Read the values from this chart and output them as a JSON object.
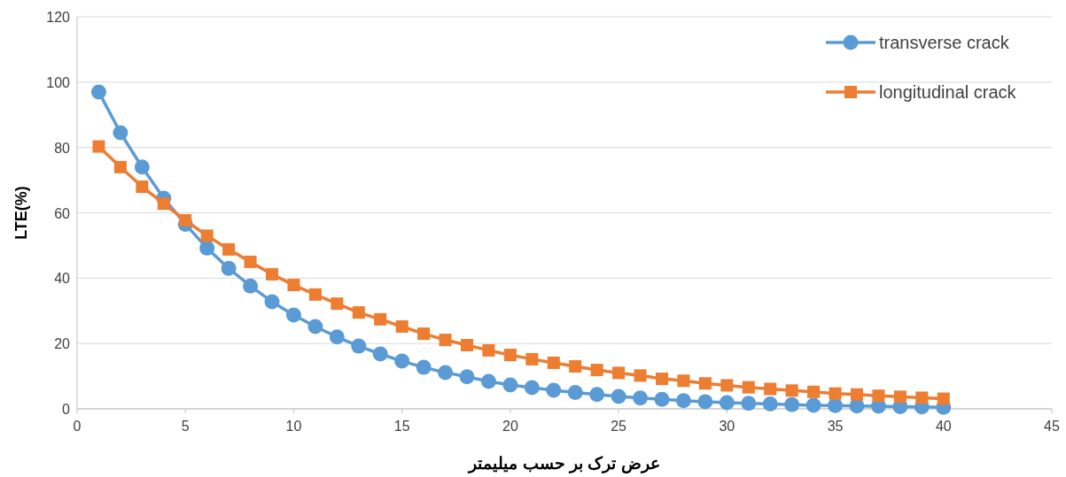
{
  "chart_data": {
    "type": "line",
    "xlabel": "عرض ترک بر حسب میلیمتر",
    "ylabel": "LTE(%)",
    "x": [
      1,
      2,
      3,
      4,
      5,
      6,
      7,
      8,
      9,
      10,
      11,
      12,
      13,
      14,
      15,
      16,
      17,
      18,
      19,
      20,
      21,
      22,
      23,
      24,
      25,
      26,
      27,
      28,
      29,
      30,
      31,
      32,
      33,
      34,
      35,
      36,
      37,
      38,
      39,
      40
    ],
    "series": [
      {
        "name": "transverse crack",
        "color": "#5b9bd5",
        "marker": "circle",
        "values": [
          97,
          84.5,
          74,
          64.5,
          56.5,
          49.2,
          43,
          37.6,
          32.8,
          28.7,
          25.2,
          22,
          19.2,
          16.8,
          14.6,
          12.7,
          11.1,
          9.8,
          8.4,
          7.3,
          6.5,
          5.7,
          5,
          4.4,
          3.8,
          3.3,
          2.9,
          2.5,
          2.2,
          1.9,
          1.7,
          1.5,
          1.3,
          1.1,
          1,
          0.9,
          0.8,
          0.7,
          0.6,
          0.5
        ]
      },
      {
        "name": "longitudinal crack",
        "color": "#ed7d31",
        "marker": "square",
        "values": [
          80.3,
          74,
          68,
          62.8,
          57.7,
          53,
          48.8,
          45,
          41.2,
          37.9,
          35,
          32.2,
          29.5,
          27.4,
          25.2,
          23,
          21.1,
          19.5,
          17.9,
          16.5,
          15.2,
          14.1,
          13,
          11.9,
          11,
          10.2,
          9.2,
          8.6,
          7.8,
          7.2,
          6.6,
          6.1,
          5.6,
          5.2,
          4.7,
          4.4,
          4,
          3.7,
          3.4,
          3.1
        ]
      }
    ],
    "xlim": [
      0,
      45
    ],
    "xticks": [
      0,
      5,
      10,
      15,
      20,
      25,
      30,
      35,
      40,
      45
    ],
    "ylim": [
      0,
      120
    ],
    "yticks": [
      0,
      20,
      40,
      60,
      80,
      100,
      120
    ],
    "grid": "y",
    "legend": "top right",
    "line_style": "solid"
  }
}
